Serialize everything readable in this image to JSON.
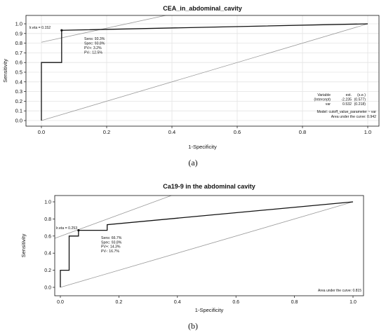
{
  "panels": [
    {
      "caption": "(a)"
    },
    {
      "caption": "(b)"
    }
  ],
  "chart_data": [
    {
      "type": "line",
      "title": "CEA_in_abdominal_cavity",
      "xlabel": "1-Specificity",
      "ylabel": "Sensitivity",
      "xlim": [
        0,
        1
      ],
      "ylim": [
        0,
        1
      ],
      "xticks": [
        "0.0",
        "0.2",
        "0.4",
        "0.6",
        "0.8",
        "1.0"
      ],
      "yticks": [
        "0.0",
        "0.1",
        "0.2",
        "0.3",
        "0.4",
        "0.5",
        "0.6",
        "0.7",
        "0.8",
        "0.9",
        "1.0"
      ],
      "grid": true,
      "series": [
        {
          "x": [
            0,
            0,
            0.062,
            0.062,
            1.0
          ],
          "y": [
            0,
            0.6,
            0.6,
            0.933,
            1.0
          ]
        }
      ],
      "guide_lines": [
        {
          "x": [
            0,
            1
          ],
          "y": [
            0,
            1
          ]
        },
        {
          "x": [
            0,
            0.44
          ],
          "y": [
            0.81,
            1.13
          ]
        }
      ],
      "cutoff_point": {
        "x": 0.062,
        "y": 0.933,
        "label": "lr.eta = 0.152"
      },
      "point_annotation": [
        "Sens: 93.3%",
        "Spec: 93.8%",
        "PV+: 3.2%",
        "PV-: 12.5%"
      ],
      "model_table": {
        "header": [
          "Variable",
          "est.",
          "(s.e.)"
        ],
        "rows": [
          [
            "(Intercept)",
            "-2.235",
            "(0.577)"
          ],
          [
            "var",
            "0.532",
            "(0.218)"
          ]
        ],
        "model": "Model:  cutoff_value_parameter ~ var",
        "auc": "Area under the curve: 0.942"
      }
    },
    {
      "type": "line",
      "title": "Ca19-9 in the abdominal cavity",
      "xlabel": "1-Specificity",
      "ylabel": "Sensitivity",
      "xlim": [
        0,
        1
      ],
      "ylim": [
        0,
        1
      ],
      "xticks": [
        "0.0",
        "0.2",
        "0.4",
        "0.6",
        "0.8",
        "1.0"
      ],
      "yticks": [
        "0.0",
        "0.2",
        "0.4",
        "0.6",
        "0.8",
        "1.0"
      ],
      "grid": false,
      "series": [
        {
          "x": [
            0,
            0,
            0.03,
            0.03,
            0.062,
            0.062,
            0.16,
            0.16,
            1.0
          ],
          "y": [
            0,
            0.2,
            0.2,
            0.6,
            0.6,
            0.667,
            0.667,
            0.733,
            1.0
          ]
        }
      ],
      "guide_lines": [
        {
          "x": [
            0,
            1
          ],
          "y": [
            0,
            1
          ]
        },
        {
          "x": [
            -0.03,
            0.44
          ],
          "y": [
            0.56,
            1.15
          ]
        }
      ],
      "cutoff_point": {
        "x": 0.062,
        "y": 0.667,
        "label": "lr.eta = 0.253"
      },
      "point_annotation": [
        "Sens: 66.7%",
        "Spec: 93.8%",
        "PV+: 14.3%",
        "PV-: 16.7%"
      ],
      "auc": "Area under the curve: 0.815"
    }
  ]
}
